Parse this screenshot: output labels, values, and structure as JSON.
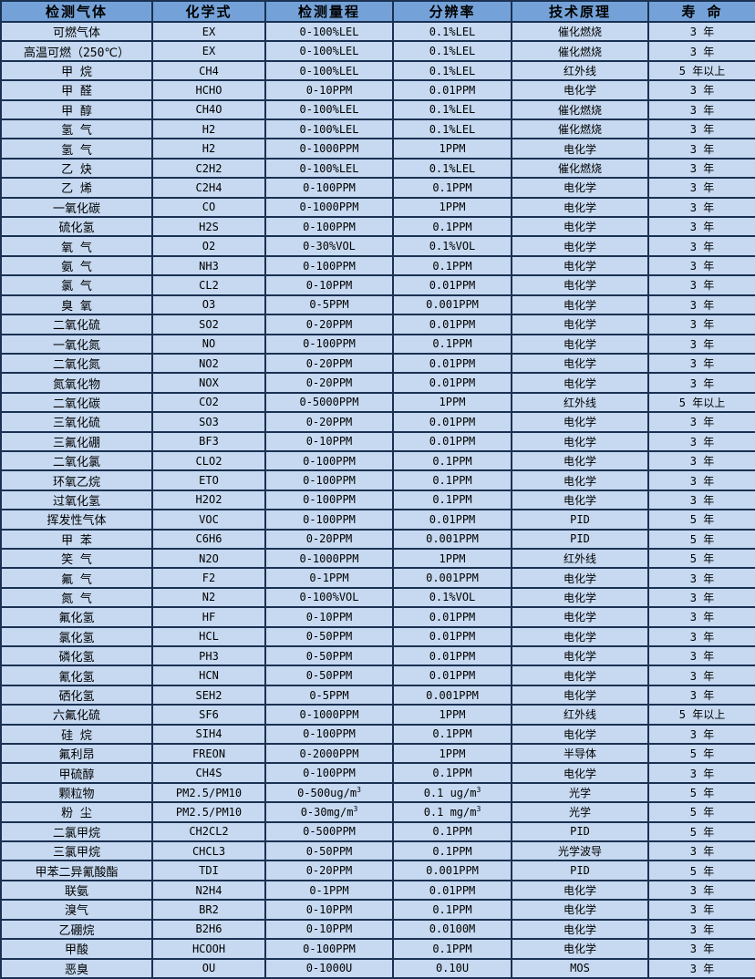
{
  "table": {
    "headers": [
      "检测气体",
      "化学式",
      "检测量程",
      "分辨率",
      "技术原理",
      "寿 命"
    ],
    "colors": {
      "header_bg": "#74a2d8",
      "row_bg": "#c6d9f1",
      "border": "#1b3152",
      "text": "#000000"
    },
    "rows": [
      [
        "可燃气体",
        "EX",
        "0-100%LEL",
        "0.1%LEL",
        "催化燃烧",
        "3 年"
      ],
      [
        "高温可燃（250℃）",
        "EX",
        "0-100%LEL",
        "0.1%LEL",
        "催化燃烧",
        "3 年"
      ],
      [
        "甲 烷",
        "CH4",
        "0-100%LEL",
        "0.1%LEL",
        "红外线",
        "5 年以上"
      ],
      [
        "甲 醛",
        "HCHO",
        "0-10PPM",
        "0.01PPM",
        "电化学",
        "3 年"
      ],
      [
        "甲 醇",
        "CH4O",
        "0-100%LEL",
        "0.1%LEL",
        "催化燃烧",
        "3 年"
      ],
      [
        "氢 气",
        "H2",
        "0-100%LEL",
        "0.1%LEL",
        "催化燃烧",
        "3 年"
      ],
      [
        "氢 气",
        "H2",
        "0-1000PPM",
        "1PPM",
        "电化学",
        "3 年"
      ],
      [
        "乙 炔",
        "C2H2",
        "0-100%LEL",
        "0.1%LEL",
        "催化燃烧",
        "3 年"
      ],
      [
        "乙 烯",
        "C2H4",
        "0-100PPM",
        "0.1PPM",
        "电化学",
        "3 年"
      ],
      [
        "一氧化碳",
        "CO",
        "0-1000PPM",
        "1PPM",
        "电化学",
        "3 年"
      ],
      [
        "硫化氢",
        "H2S",
        "0-100PPM",
        "0.1PPM",
        "电化学",
        "3 年"
      ],
      [
        "氧 气",
        "O2",
        "0-30%VOL",
        "0.1%VOL",
        "电化学",
        "3 年"
      ],
      [
        "氨 气",
        "NH3",
        "0-100PPM",
        "0.1PPM",
        "电化学",
        "3 年"
      ],
      [
        "氯 气",
        "CL2",
        "0-10PPM",
        "0.01PPM",
        "电化学",
        "3 年"
      ],
      [
        "臭 氧",
        "O3",
        "0-5PPM",
        "0.001PPM",
        "电化学",
        "3 年"
      ],
      [
        "二氧化硫",
        "SO2",
        "0-20PPM",
        "0.01PPM",
        "电化学",
        "3 年"
      ],
      [
        "一氧化氮",
        "NO",
        "0-100PPM",
        "0.1PPM",
        "电化学",
        "3 年"
      ],
      [
        "二氧化氮",
        "NO2",
        "0-20PPM",
        "0.01PPM",
        "电化学",
        "3 年"
      ],
      [
        "氮氧化物",
        "NOX",
        "0-20PPM",
        "0.01PPM",
        "电化学",
        "3 年"
      ],
      [
        "二氧化碳",
        "CO2",
        "0-5000PPM",
        "1PPM",
        "红外线",
        "5 年以上"
      ],
      [
        "三氧化硫",
        "SO3",
        "0-20PPM",
        "0.01PPM",
        "电化学",
        "3 年"
      ],
      [
        "三氟化硼",
        "BF3",
        "0-10PPM",
        "0.01PPM",
        "电化学",
        "3 年"
      ],
      [
        "二氧化氯",
        "CLO2",
        "0-100PPM",
        "0.1PPM",
        "电化学",
        "3 年"
      ],
      [
        "环氧乙烷",
        "ETO",
        "0-100PPM",
        "0.1PPM",
        "电化学",
        "3 年"
      ],
      [
        "过氧化氢",
        "H2O2",
        "0-100PPM",
        "0.1PPM",
        "电化学",
        "3 年"
      ],
      [
        "挥发性气体",
        "VOC",
        "0-100PPM",
        "0.01PPM",
        "PID",
        "5 年"
      ],
      [
        "甲 苯",
        "C6H6",
        "0-20PPM",
        "0.001PPM",
        "PID",
        "5 年"
      ],
      [
        "笑 气",
        "N2O",
        "0-1000PPM",
        "1PPM",
        "红外线",
        "5 年"
      ],
      [
        "氟 气",
        "F2",
        "0-1PPM",
        "0.001PPM",
        "电化学",
        "3 年"
      ],
      [
        "氮 气",
        "N2",
        "0-100%VOL",
        "0.1%VOL",
        "电化学",
        "3 年"
      ],
      [
        "氟化氢",
        "HF",
        "0-10PPM",
        "0.01PPM",
        "电化学",
        "3 年"
      ],
      [
        "氯化氢",
        "HCL",
        "0-50PPM",
        "0.01PPM",
        "电化学",
        "3 年"
      ],
      [
        "磷化氢",
        "PH3",
        "0-50PPM",
        "0.01PPM",
        "电化学",
        "3 年"
      ],
      [
        "氰化氢",
        "HCN",
        "0-50PPM",
        "0.01PPM",
        "电化学",
        "3 年"
      ],
      [
        "硒化氢",
        "SEH2",
        "0-5PPM",
        "0.001PPM",
        "电化学",
        "3 年"
      ],
      [
        "六氟化硫",
        "SF6",
        "0-1000PPM",
        "1PPM",
        "红外线",
        "5 年以上"
      ],
      [
        "硅 烷",
        "SIH4",
        "0-100PPM",
        "0.1PPM",
        "电化学",
        "3 年"
      ],
      [
        "氟利昂",
        "FREON",
        "0-2000PPM",
        "1PPM",
        "半导体",
        "5 年"
      ],
      [
        "甲硫醇",
        "CH4S",
        "0-100PPM",
        "0.1PPM",
        "电化学",
        "3 年"
      ],
      [
        "颗粒物",
        "PM2.5/PM10",
        "0-500ug/m³",
        "0.1 ug/m³",
        "光学",
        "5 年"
      ],
      [
        "粉 尘",
        "PM2.5/PM10",
        "0-30mg/m³",
        "0.1 mg/m³",
        "光学",
        "5 年"
      ],
      [
        "二氯甲烷",
        "CH2CL2",
        "0-500PPM",
        "0.1PPM",
        "PID",
        "5 年"
      ],
      [
        "三氯甲烷",
        "CHCL3",
        "0-50PPM",
        "0.1PPM",
        "光学波导",
        "3 年"
      ],
      [
        "甲苯二异氰酸酯",
        "TDI",
        "0-20PPM",
        "0.001PPM",
        "PID",
        "5 年"
      ],
      [
        "联氨",
        "N2H4",
        "0-1PPM",
        "0.01PPM",
        "电化学",
        "3 年"
      ],
      [
        "溴气",
        "BR2",
        "0-10PPM",
        "0.1PPM",
        "电化学",
        "3 年"
      ],
      [
        "乙硼烷",
        "B2H6",
        "0-10PPM",
        "0.0100M",
        "电化学",
        "3 年"
      ],
      [
        "甲酸",
        "HCOOH",
        "0-100PPM",
        "0.1PPM",
        "电化学",
        "3 年"
      ],
      [
        "恶臭",
        "OU",
        "0-1000U",
        "0.10U",
        "MOS",
        "3 年"
      ]
    ]
  }
}
